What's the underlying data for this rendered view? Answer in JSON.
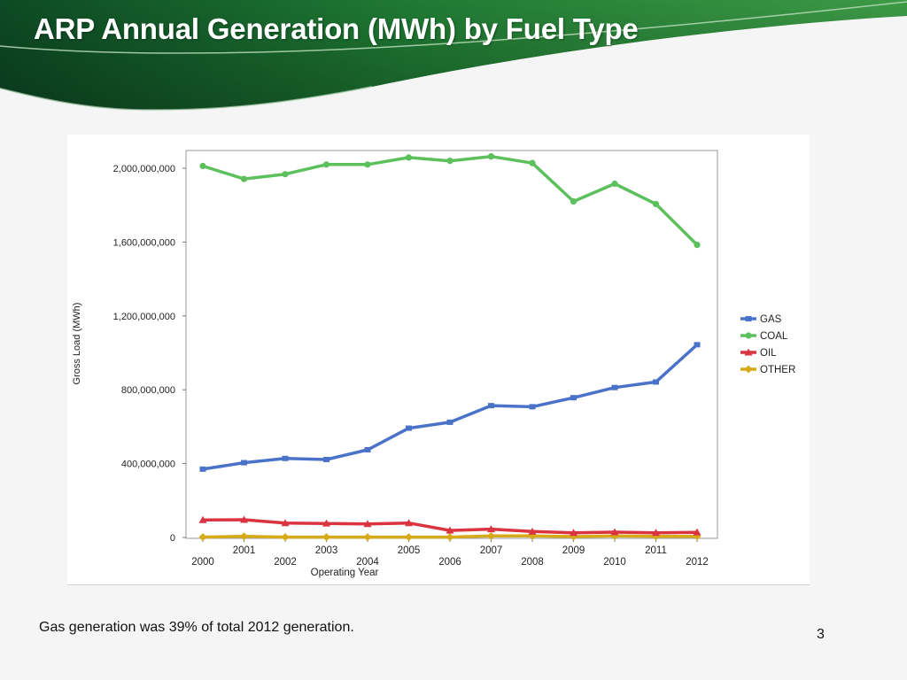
{
  "slide": {
    "title": "ARP Annual Generation (MWh) by Fuel Type",
    "caption": "Gas generation was 39% of total 2012 generation.",
    "page_number": "3",
    "colors": {
      "banner_dark": "#0d4a24",
      "banner_mid": "#1f7a33",
      "banner_light": "#3d9a46"
    }
  },
  "chart_data": {
    "type": "line",
    "title": "",
    "xlabel": "Operating Year",
    "ylabel": "Gross Load (MWh)",
    "x": [
      2000,
      2001,
      2002,
      2003,
      2004,
      2005,
      2006,
      2007,
      2008,
      2009,
      2010,
      2011,
      2012
    ],
    "x_tick_labels": [
      "2000",
      "2001",
      "2002",
      "2003",
      "2004",
      "2005",
      "2006",
      "2007",
      "2008",
      "2009",
      "2010",
      "2011",
      "2012"
    ],
    "ylim": [
      0,
      2000000000
    ],
    "y_ticks": [
      0,
      400000000,
      800000000,
      1200000000,
      1600000000,
      2000000000
    ],
    "y_tick_labels": [
      "0",
      "400,000,000",
      "800,000,000",
      "1,200,000,000",
      "1,600,000,000",
      "2,000,000,000"
    ],
    "grid": false,
    "legend_position": "right",
    "series": [
      {
        "name": "GAS",
        "color": "#4a72c9",
        "marker": "square",
        "values": [
          370000000,
          405000000,
          428000000,
          422000000,
          475000000,
          592000000,
          624000000,
          714000000,
          708000000,
          757000000,
          812000000,
          842000000,
          1044000000
        ]
      },
      {
        "name": "COAL",
        "color": "#5cc15c",
        "marker": "circle",
        "values": [
          2012000000,
          1942000000,
          1968000000,
          2020000000,
          2020000000,
          2058000000,
          2040000000,
          2064000000,
          2028000000,
          1820000000,
          1916000000,
          1806000000,
          1585000000
        ]
      },
      {
        "name": "OIL",
        "color": "#d9343f",
        "marker": "triangle",
        "values": [
          95000000,
          96000000,
          78000000,
          76000000,
          73000000,
          78000000,
          38000000,
          45000000,
          32000000,
          25000000,
          29000000,
          25000000,
          28000000
        ]
      },
      {
        "name": "OTHER",
        "color": "#d6aa18",
        "marker": "diamond",
        "values": [
          2000000,
          6000000,
          2000000,
          2000000,
          2000000,
          2000000,
          2000000,
          8000000,
          8000000,
          5000000,
          8000000,
          6000000,
          6000000
        ]
      }
    ]
  }
}
